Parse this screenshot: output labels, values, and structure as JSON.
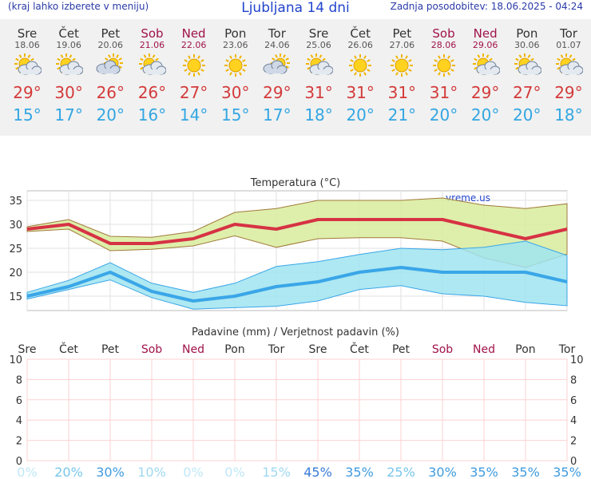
{
  "header": {
    "left_note": "(kraj lahko izberete v meniju)",
    "title": "Ljubljana 14 dni",
    "last_update": "Zadnja posodobitev: 18.06.2025 - 04:24"
  },
  "days": [
    {
      "name": "Sre",
      "date": "18.06",
      "weekend": false,
      "icon": "sun-with-clouds-icon",
      "high": "29°",
      "low": "15°"
    },
    {
      "name": "Čet",
      "date": "19.06",
      "weekend": false,
      "icon": "sun-with-clouds-icon",
      "high": "30°",
      "low": "17°"
    },
    {
      "name": "Pet",
      "date": "20.06",
      "weekend": false,
      "icon": "partly-cloudy-icon",
      "high": "26°",
      "low": "20°"
    },
    {
      "name": "Sob",
      "date": "21.06",
      "weekend": true,
      "icon": "sun-with-clouds-icon",
      "high": "26°",
      "low": "16°"
    },
    {
      "name": "Ned",
      "date": "22.06",
      "weekend": true,
      "icon": "sun-icon",
      "high": "27°",
      "low": "14°"
    },
    {
      "name": "Pon",
      "date": "23.06",
      "weekend": false,
      "icon": "sun-icon",
      "high": "30°",
      "low": "15°"
    },
    {
      "name": "Tor",
      "date": "24.06",
      "weekend": false,
      "icon": "partly-cloudy-icon",
      "high": "29°",
      "low": "17°"
    },
    {
      "name": "Sre",
      "date": "25.06",
      "weekend": false,
      "icon": "sun-with-clouds-icon",
      "high": "31°",
      "low": "18°"
    },
    {
      "name": "Čet",
      "date": "26.06",
      "weekend": false,
      "icon": "sun-icon",
      "high": "31°",
      "low": "20°"
    },
    {
      "name": "Pet",
      "date": "27.06",
      "weekend": false,
      "icon": "sun-icon",
      "high": "31°",
      "low": "21°"
    },
    {
      "name": "Sob",
      "date": "28.06",
      "weekend": true,
      "icon": "sun-icon",
      "high": "31°",
      "low": "20°"
    },
    {
      "name": "Ned",
      "date": "29.06",
      "weekend": true,
      "icon": "sun-with-clouds-icon",
      "high": "29°",
      "low": "20°"
    },
    {
      "name": "Pon",
      "date": "30.06",
      "weekend": false,
      "icon": "sun-with-clouds-icon",
      "high": "27°",
      "low": "20°"
    },
    {
      "name": "Tor",
      "date": "01.07",
      "weekend": false,
      "icon": "sun-with-clouds-icon",
      "high": "29°",
      "low": "18°"
    }
  ],
  "chart_data": [
    {
      "type": "line",
      "title": "Temperatura (°C)",
      "watermark": "vreme.us",
      "ylim": [
        12,
        37
      ],
      "yticks": [
        15,
        20,
        25,
        30,
        35
      ],
      "grid": true,
      "x": [
        "18.06",
        "19.06",
        "20.06",
        "21.06",
        "22.06",
        "23.06",
        "24.06",
        "25.06",
        "26.06",
        "27.06",
        "28.06",
        "29.06",
        "30.06",
        "01.07"
      ],
      "series": [
        {
          "name": "max",
          "values": [
            29,
            30,
            26,
            26,
            27,
            30,
            29,
            31,
            31,
            31,
            31,
            29,
            27,
            29
          ],
          "color": "#d63244",
          "band_upper": [
            29.5,
            31,
            27.5,
            27.3,
            28.5,
            32.5,
            33.3,
            35,
            35,
            35,
            35.5,
            34,
            33.3,
            34.3
          ],
          "band_lower": [
            28.5,
            29,
            24.5,
            24.8,
            25.5,
            27.6,
            25.2,
            27,
            27.2,
            27.2,
            26.5,
            23,
            21,
            23.8
          ]
        },
        {
          "name": "min",
          "values": [
            15,
            17,
            20,
            16,
            14,
            15,
            17,
            18,
            20,
            21,
            20,
            20,
            20,
            18
          ],
          "color": "#3aa6e8",
          "band_upper": [
            15.8,
            18.3,
            22,
            17.7,
            15.8,
            17.7,
            21.2,
            22.2,
            23.7,
            25,
            24.7,
            25.2,
            26.5,
            23.5
          ],
          "band_lower": [
            14.4,
            16.4,
            18.4,
            14.7,
            12.3,
            12.6,
            12.9,
            14,
            16.4,
            17.2,
            15.5,
            15,
            13.7,
            13
          ]
        }
      ],
      "colors": {
        "max_band": "#d8ec9c",
        "min_band": "#a0e4f0",
        "overlap": "#8cd68c"
      }
    },
    {
      "type": "bar",
      "title": "Padavine (mm) / Verjetnost padavin (%)",
      "categories": [
        "Sre",
        "Čet",
        "Pet",
        "Sob",
        "Ned",
        "Pon",
        "Tor",
        "Sre",
        "Čet",
        "Pet",
        "Sob",
        "Ned",
        "Pon",
        "Tor"
      ],
      "weekend": [
        false,
        false,
        false,
        true,
        true,
        false,
        false,
        false,
        false,
        false,
        true,
        true,
        false,
        false
      ],
      "values_mm": [
        0,
        0,
        0,
        0,
        0,
        0,
        0,
        0,
        0,
        0,
        0,
        0,
        0,
        0
      ],
      "probability_pct": [
        0,
        20,
        30,
        10,
        0,
        0,
        15,
        45,
        35,
        25,
        30,
        35,
        35,
        35
      ],
      "probability_labels": [
        "0%",
        "20%",
        "30%",
        "10%",
        "0%",
        "0%",
        "15%",
        "45%",
        "35%",
        "25%",
        "30%",
        "35%",
        "35%",
        "35%"
      ],
      "ylim": [
        0,
        10
      ],
      "yticks": [
        0,
        2,
        4,
        6,
        8,
        10
      ],
      "grid": true
    }
  ]
}
